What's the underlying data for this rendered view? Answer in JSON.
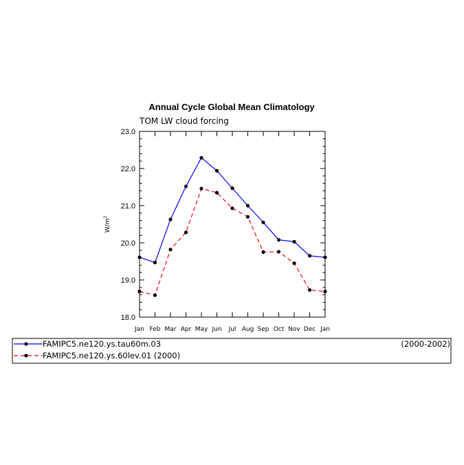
{
  "chart_data": {
    "type": "line",
    "title": "Annual Cycle Global Mean Climatology",
    "subtitle": "TOM LW cloud forcing",
    "ylabel": "W/m",
    "ylabel_sup": "2",
    "ylim": [
      18.0,
      23.0
    ],
    "yticks": [
      "18.0",
      "19.0",
      "20.0",
      "21.0",
      "22.0",
      "23.0"
    ],
    "categories": [
      "Jan",
      "Feb",
      "Mar",
      "Apr",
      "May",
      "Jun",
      "Jul",
      "Aug",
      "Sep",
      "Oct",
      "Nov",
      "Dec",
      "Jan"
    ],
    "grid": false,
    "legend_position": "bottom",
    "series": [
      {
        "name": "FAMIPC5.ne120.ys.tau60m.03",
        "period": "(2000-2002)",
        "color": "#0000ff",
        "style": "solid",
        "values": [
          19.61,
          19.47,
          20.63,
          21.52,
          22.29,
          21.94,
          21.47,
          21.0,
          20.55,
          20.08,
          20.03,
          19.65,
          19.61
        ]
      },
      {
        "name": "FAMIPC5.ne120.ys.60lev.01 (2000)",
        "period": "",
        "color": "#ff0000",
        "style": "dashed",
        "values": [
          18.69,
          18.59,
          19.82,
          20.28,
          21.46,
          21.35,
          20.93,
          20.7,
          19.75,
          19.76,
          19.45,
          18.73,
          18.69
        ]
      }
    ]
  }
}
